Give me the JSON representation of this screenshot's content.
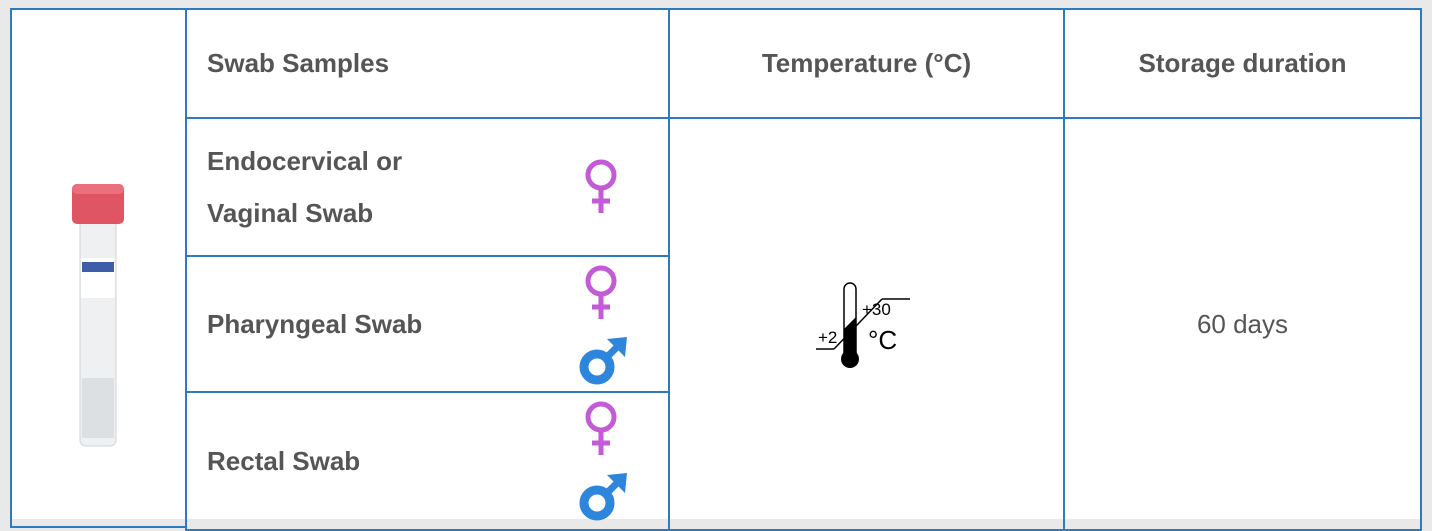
{
  "table": {
    "header": [
      "Swab Samples",
      "Temperature (°C)",
      "Storage duration"
    ],
    "rows": [
      {
        "sample": "Endocervical or Vaginal Swab"
      },
      {
        "sample": "Pharyngeal Swab"
      },
      {
        "sample": "Rectal Swab"
      }
    ],
    "temperature": {
      "min": "+2",
      "max": "+30",
      "unit": "°C"
    },
    "storage": "60 days"
  }
}
